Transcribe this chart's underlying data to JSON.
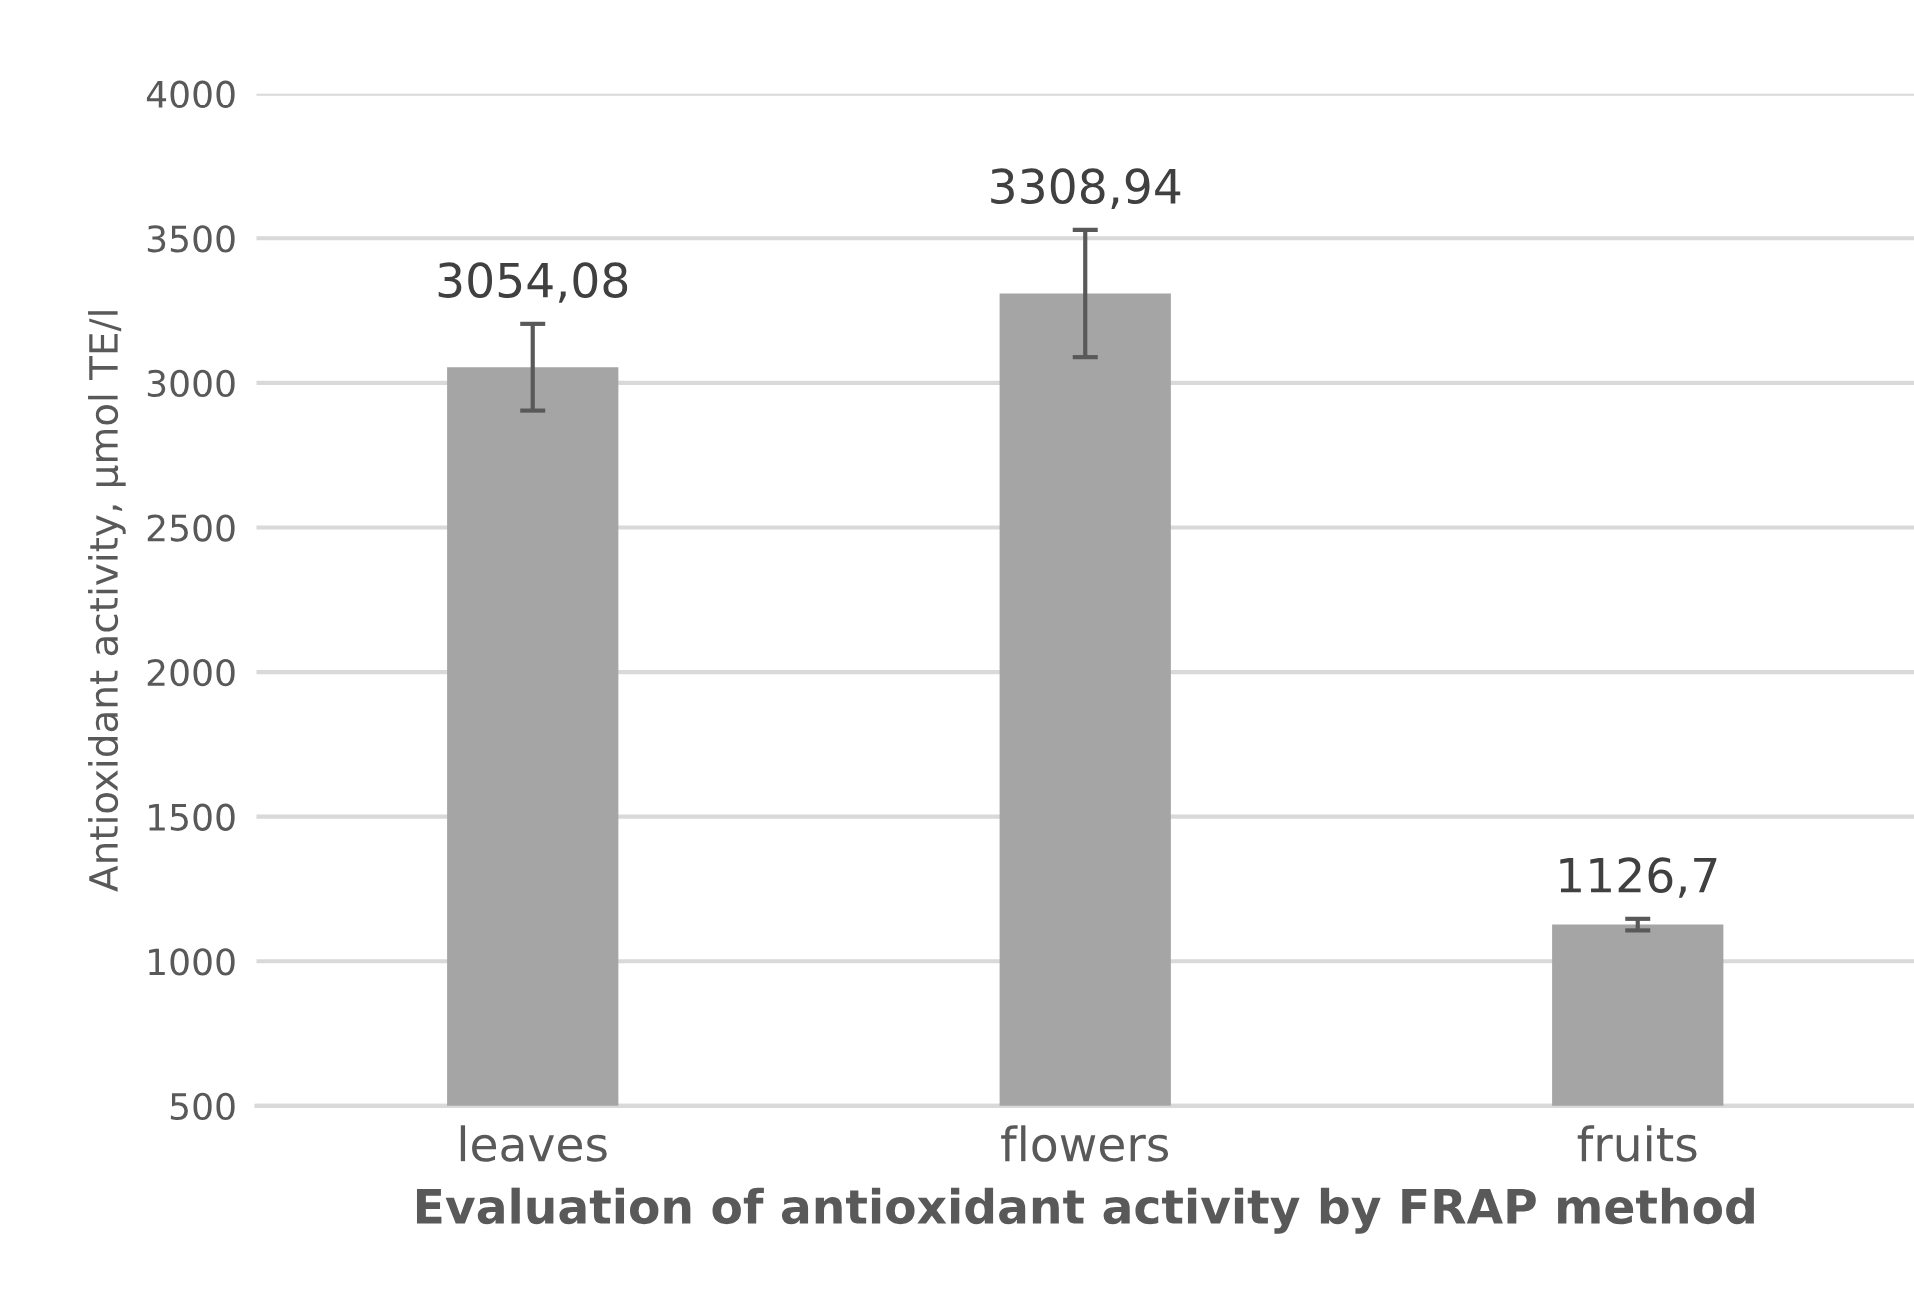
{
  "chart_data": {
    "type": "bar",
    "xlabel": "Evaluation of antioxidant activity by FRAP method",
    "ylabel": "Antioxidant activity, µmol TE/l",
    "categories": [
      "leaves",
      "flowers",
      "fruits"
    ],
    "values": [
      3054.08,
      3308.94,
      1126.7
    ],
    "errors": [
      150,
      220,
      20
    ],
    "color": "#a5a5a5",
    "data_labels": true,
    "value_labels": [
      "3054,08",
      "3308,94",
      "1126,7"
    ],
    "ylim": [
      500,
      4000
    ],
    "yticks": [
      500,
      1000,
      1500,
      2000,
      2500,
      3000,
      3500,
      4000
    ],
    "grid": "y"
  }
}
